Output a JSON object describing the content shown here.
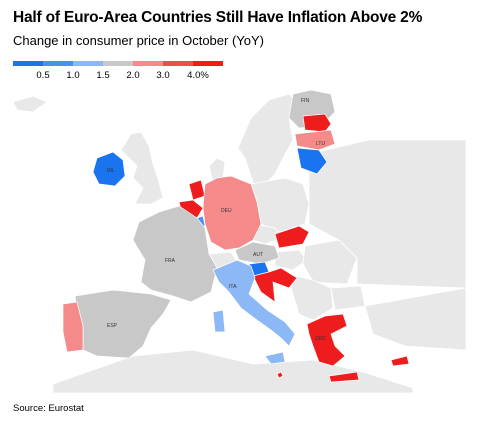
{
  "title": "Half of Euro-Area Countries Still Have Inflation Above 2%",
  "subtitle": "Change in consumer price in October (YoY)",
  "legend": {
    "ticks": [
      "0.5",
      "1.0",
      "1.5",
      "2.0",
      "3.0",
      "4.0%"
    ],
    "colors": [
      "#1a74f0",
      "#4a90f0",
      "#8cb8f5",
      "#c8c8c8",
      "#f58a8a",
      "#f04d4d",
      "#ee1c1c"
    ]
  },
  "colors": {
    "background_land": "#e8e8e8",
    "border": "#ffffff"
  },
  "countries": {
    "fin": "FIN",
    "irl": "IRL",
    "ltu": "LTU",
    "deu": "DEU",
    "fra": "FRA",
    "aut": "AUT",
    "ita": "ITA",
    "esp": "ESP",
    "grc": "GRC"
  },
  "source": "Source: Eurostat"
}
